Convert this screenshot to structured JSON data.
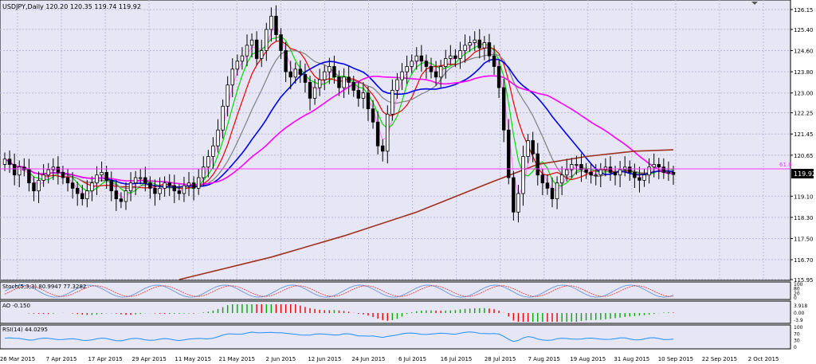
{
  "window": {
    "symbol_header": "USDJPY,Daily  120.20 120.35 119.74 119.92"
  },
  "colors": {
    "plot_bg": "#e6e6f4",
    "grid": "#b9b9d9",
    "candle": "#000000",
    "fib_line": "#ff33ff",
    "ma_green": "#00dd00",
    "ma_red": "#ee0000",
    "ma_blue": "#0000ee",
    "ma_magenta": "#ff00ff",
    "ma_brown": "#a03020",
    "ma_pink": "#ff88ff",
    "ma_gray": "#808080",
    "ao_up": "#00aa00",
    "ao_down": "#ee0000",
    "rsi_line": "#1e90ff",
    "stoch_main": "#5a8ad6",
    "stoch_signal": "#dd3333"
  },
  "price_axis": {
    "ticks": [
      "126.15",
      "125.40",
      "124.60",
      "123.80",
      "123.00",
      "122.25",
      "121.45",
      "120.65",
      "119.10",
      "118.30",
      "117.50",
      "116.70",
      "115.95"
    ],
    "current_price_label": "119.92",
    "fib_label": "61.8"
  },
  "time_axis": {
    "labels": [
      "26 Mar 2015",
      "7 Apr 2015",
      "17 Apr 2015",
      "29 Apr 2015",
      "11 May 2015",
      "21 May 2015",
      "2 Jun 2015",
      "12 Jun 2015",
      "24 Jun 2015",
      "6 Jul 2015",
      "16 Jul 2015",
      "28 Jul 2015",
      "7 Aug 2015",
      "19 Aug 2015",
      "31 Aug 2015",
      "10 Sep 2015",
      "22 Sep 2015",
      "2 Oct 2015"
    ]
  },
  "indicators": {
    "stoch": {
      "label": "Stoch(5,3,3) 80.9947 77.3282",
      "ticks": [
        "100",
        "80",
        "20",
        "0"
      ]
    },
    "ao": {
      "label": "AO -0.150",
      "ticks": [
        "3.918",
        "0.00",
        "-3.9"
      ]
    },
    "rsi": {
      "label": "RSI(14) 44.0295",
      "ticks": [
        "100",
        "70",
        "30",
        "0"
      ]
    }
  },
  "chart_data": {
    "type": "candlestick",
    "symbol": "USDJPY",
    "timeframe": "Daily",
    "last_ohlc": {
      "open": 120.2,
      "high": 120.35,
      "low": 119.74,
      "close": 119.92
    },
    "ylim": [
      115.95,
      126.15
    ],
    "fib_level": {
      "name": "61.8",
      "price": 120.08
    },
    "closes": [
      120.5,
      120.3,
      119.9,
      120.2,
      120.1,
      119.6,
      119.3,
      119.7,
      119.9,
      120.1,
      120.2,
      120.0,
      119.8,
      119.6,
      119.4,
      119.2,
      119.0,
      119.3,
      119.6,
      119.9,
      120.0,
      119.7,
      119.3,
      119.0,
      118.9,
      119.3,
      119.6,
      119.8,
      119.8,
      119.6,
      119.4,
      119.2,
      119.4,
      119.6,
      119.5,
      119.3,
      119.2,
      119.5,
      119.6,
      119.4,
      119.8,
      120.2,
      120.6,
      121.0,
      121.6,
      122.5,
      123.3,
      123.9,
      124.2,
      124.4,
      124.8,
      125.0,
      124.3,
      124.6,
      125.4,
      125.9,
      125.2,
      124.6,
      123.8,
      123.6,
      123.9,
      123.7,
      123.4,
      122.8,
      123.2,
      123.5,
      123.8,
      124.0,
      123.6,
      123.2,
      123.6,
      123.4,
      123.1,
      122.8,
      123.0,
      122.4,
      121.9,
      121.0,
      120.8,
      122.2,
      123.1,
      123.5,
      123.8,
      124.0,
      124.2,
      124.4,
      124.2,
      124.0,
      123.8,
      123.6,
      124.0,
      124.3,
      124.4,
      124.3,
      124.6,
      124.8,
      124.9,
      125.0,
      124.7,
      124.9,
      124.4,
      124.0,
      123.2,
      121.6,
      119.8,
      118.5,
      119.2,
      120.6,
      121.2,
      120.7,
      119.9,
      119.6,
      119.4,
      119.0,
      119.6,
      119.9,
      120.1,
      120.3,
      120.3,
      120.1,
      120.0,
      119.9,
      119.9,
      120.1,
      120.2,
      120.0,
      119.9,
      120.1,
      120.2,
      120.0,
      119.8,
      119.7,
      119.9,
      120.2,
      120.3,
      120.2,
      120.0,
      120.0,
      119.92
    ],
    "series_names": [
      "Stoch(5,3,3)",
      "AO",
      "RSI(14)"
    ]
  }
}
